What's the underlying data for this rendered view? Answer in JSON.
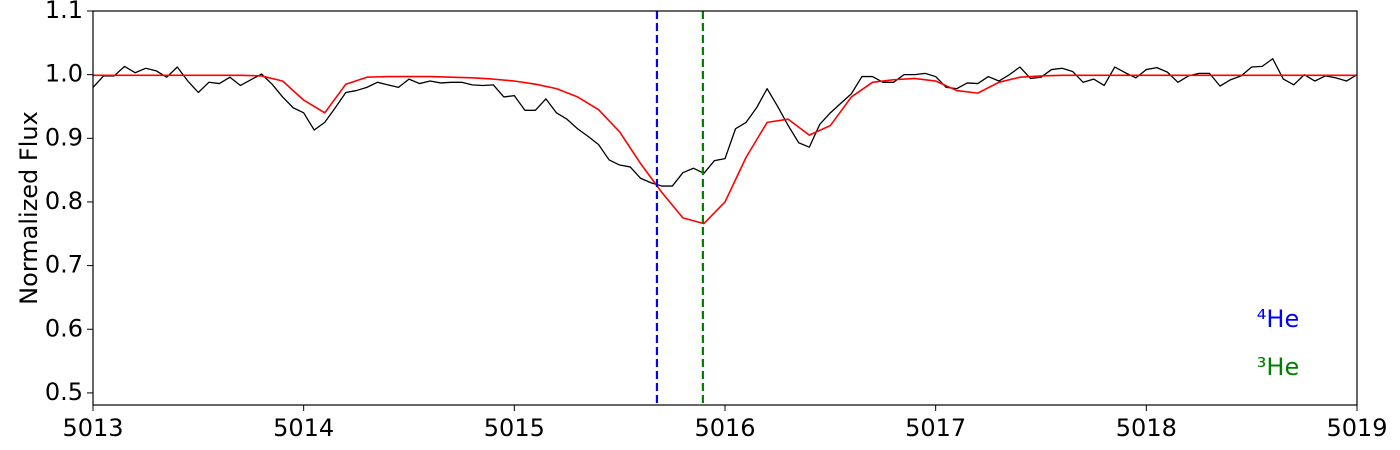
{
  "chart_data": {
    "type": "line",
    "y_label": "Normalized Flux",
    "xlim": [
      5013,
      5019
    ],
    "xticks": [
      5013,
      5014,
      5015,
      5016,
      5017,
      5018,
      5019
    ],
    "ylim": [
      0.481,
      1.1
    ],
    "yticks": [
      0.5,
      0.6,
      0.7,
      0.8,
      0.9,
      {
        "value": 1,
        "label": "1.0"
      },
      1.1
    ],
    "series": [
      {
        "color": "#000000",
        "x": [
          5013.0,
          5013.05,
          5013.1,
          5013.15,
          5013.2,
          5013.25,
          5013.3,
          5013.35,
          5013.4,
          5013.45,
          5013.5,
          5013.55,
          5013.6,
          5013.65,
          5013.7,
          5013.75,
          5013.8,
          5013.85,
          5013.9,
          5013.95,
          5014.0,
          5014.05,
          5014.1,
          5014.15,
          5014.2,
          5014.25,
          5014.3,
          5014.35,
          5014.4,
          5014.45,
          5014.5,
          5014.55,
          5014.6,
          5014.65,
          5014.7,
          5014.75,
          5014.8,
          5014.85,
          5014.9,
          5014.95,
          5015.0,
          5015.05,
          5015.1,
          5015.15,
          5015.2,
          5015.25,
          5015.3,
          5015.35,
          5015.4,
          5015.45,
          5015.5,
          5015.55,
          5015.6,
          5015.65,
          5015.7,
          5015.75,
          5015.8,
          5015.85,
          5015.9,
          5015.95,
          5016.0,
          5016.05,
          5016.1,
          5016.15,
          5016.2,
          5016.25,
          5016.3,
          5016.35,
          5016.4,
          5016.45,
          5016.5,
          5016.55,
          5016.6,
          5016.65,
          5016.7,
          5016.75,
          5016.8,
          5016.85,
          5016.9,
          5016.95,
          5017.0,
          5017.05,
          5017.1,
          5017.15,
          5017.2,
          5017.25,
          5017.3,
          5017.35,
          5017.4,
          5017.45,
          5017.5,
          5017.55,
          5017.6,
          5017.65,
          5017.7,
          5017.75,
          5017.8,
          5017.85,
          5017.9,
          5017.95,
          5018.0,
          5018.05,
          5018.1,
          5018.15,
          5018.2,
          5018.25,
          5018.3,
          5018.35,
          5018.4,
          5018.45,
          5018.5,
          5018.55,
          5018.6,
          5018.65,
          5018.7,
          5018.75,
          5018.8,
          5018.85,
          5018.9,
          5018.95,
          5019.0
        ],
        "values": [
          0.98,
          0.998,
          0.998,
          1.013,
          1.003,
          1.01,
          1.006,
          0.996,
          1.012,
          0.99,
          0.972,
          0.988,
          0.986,
          0.996,
          0.983,
          0.992,
          1.001,
          0.985,
          0.965,
          0.948,
          0.94,
          0.913,
          0.925,
          0.948,
          0.972,
          0.975,
          0.98,
          0.988,
          0.984,
          0.98,
          0.993,
          0.986,
          0.99,
          0.987,
          0.988,
          0.988,
          0.984,
          0.983,
          0.984,
          0.965,
          0.967,
          0.944,
          0.944,
          0.962,
          0.94,
          0.93,
          0.915,
          0.903,
          0.89,
          0.866,
          0.858,
          0.855,
          0.837,
          0.83,
          0.825,
          0.825,
          0.846,
          0.853,
          0.845,
          0.865,
          0.868,
          0.915,
          0.925,
          0.948,
          0.978,
          0.95,
          0.92,
          0.893,
          0.886,
          0.922,
          0.94,
          0.955,
          0.97,
          0.997,
          0.997,
          0.988,
          0.988,
          1.0,
          1.0,
          1.002,
          0.997,
          0.98,
          0.978,
          0.987,
          0.986,
          0.997,
          0.99,
          1.0,
          1.012,
          0.994,
          0.996,
          1.008,
          1.01,
          1.005,
          0.988,
          0.993,
          0.983,
          1.012,
          1.003,
          0.995,
          1.008,
          1.011,
          1.004,
          0.988,
          0.998,
          1.002,
          1.002,
          0.982,
          0.992,
          0.998,
          1.012,
          1.013,
          1.025,
          0.993,
          0.984,
          1.0,
          0.99,
          0.998,
          0.995,
          0.99,
          1.0
        ]
      },
      {
        "color": "#ff0000",
        "x": [
          5013.0,
          5013.1,
          5013.2,
          5013.3,
          5013.4,
          5013.5,
          5013.6,
          5013.7,
          5013.8,
          5013.9,
          5014.0,
          5014.1,
          5014.2,
          5014.3,
          5014.4,
          5014.5,
          5014.6,
          5014.7,
          5014.8,
          5014.9,
          5015.0,
          5015.1,
          5015.2,
          5015.3,
          5015.4,
          5015.5,
          5015.6,
          5015.7,
          5015.8,
          5015.9,
          5016.0,
          5016.1,
          5016.2,
          5016.3,
          5016.4,
          5016.5,
          5016.6,
          5016.7,
          5016.8,
          5016.9,
          5017.0,
          5017.1,
          5017.2,
          5017.3,
          5017.4,
          5017.5,
          5017.6,
          5017.7,
          5017.8,
          5017.9,
          5018.0,
          5018.1,
          5018.2,
          5018.3,
          5018.4,
          5018.5,
          5018.6,
          5018.7,
          5018.8,
          5018.9,
          5019.0
        ],
        "values": [
          0.999,
          0.999,
          0.999,
          0.999,
          0.999,
          0.999,
          0.999,
          0.999,
          0.998,
          0.99,
          0.96,
          0.94,
          0.985,
          0.996,
          0.997,
          0.997,
          0.997,
          0.996,
          0.995,
          0.993,
          0.99,
          0.985,
          0.978,
          0.965,
          0.945,
          0.91,
          0.86,
          0.815,
          0.775,
          0.766,
          0.8,
          0.87,
          0.925,
          0.93,
          0.905,
          0.92,
          0.965,
          0.988,
          0.992,
          0.994,
          0.99,
          0.975,
          0.971,
          0.988,
          0.996,
          0.998,
          0.999,
          0.999,
          0.999,
          0.999,
          0.999,
          0.999,
          0.999,
          0.999,
          0.999,
          0.999,
          0.999,
          0.999,
          0.999,
          0.999,
          0.999
        ]
      }
    ],
    "vlines": [
      {
        "x": 5015.677,
        "color": "#0000ff"
      },
      {
        "x": 5015.895,
        "color": "#008000"
      }
    ],
    "annotations": [
      {
        "text": "⁴He",
        "color": "#0000ff"
      },
      {
        "text": "³He",
        "color": "#008000"
      }
    ]
  }
}
